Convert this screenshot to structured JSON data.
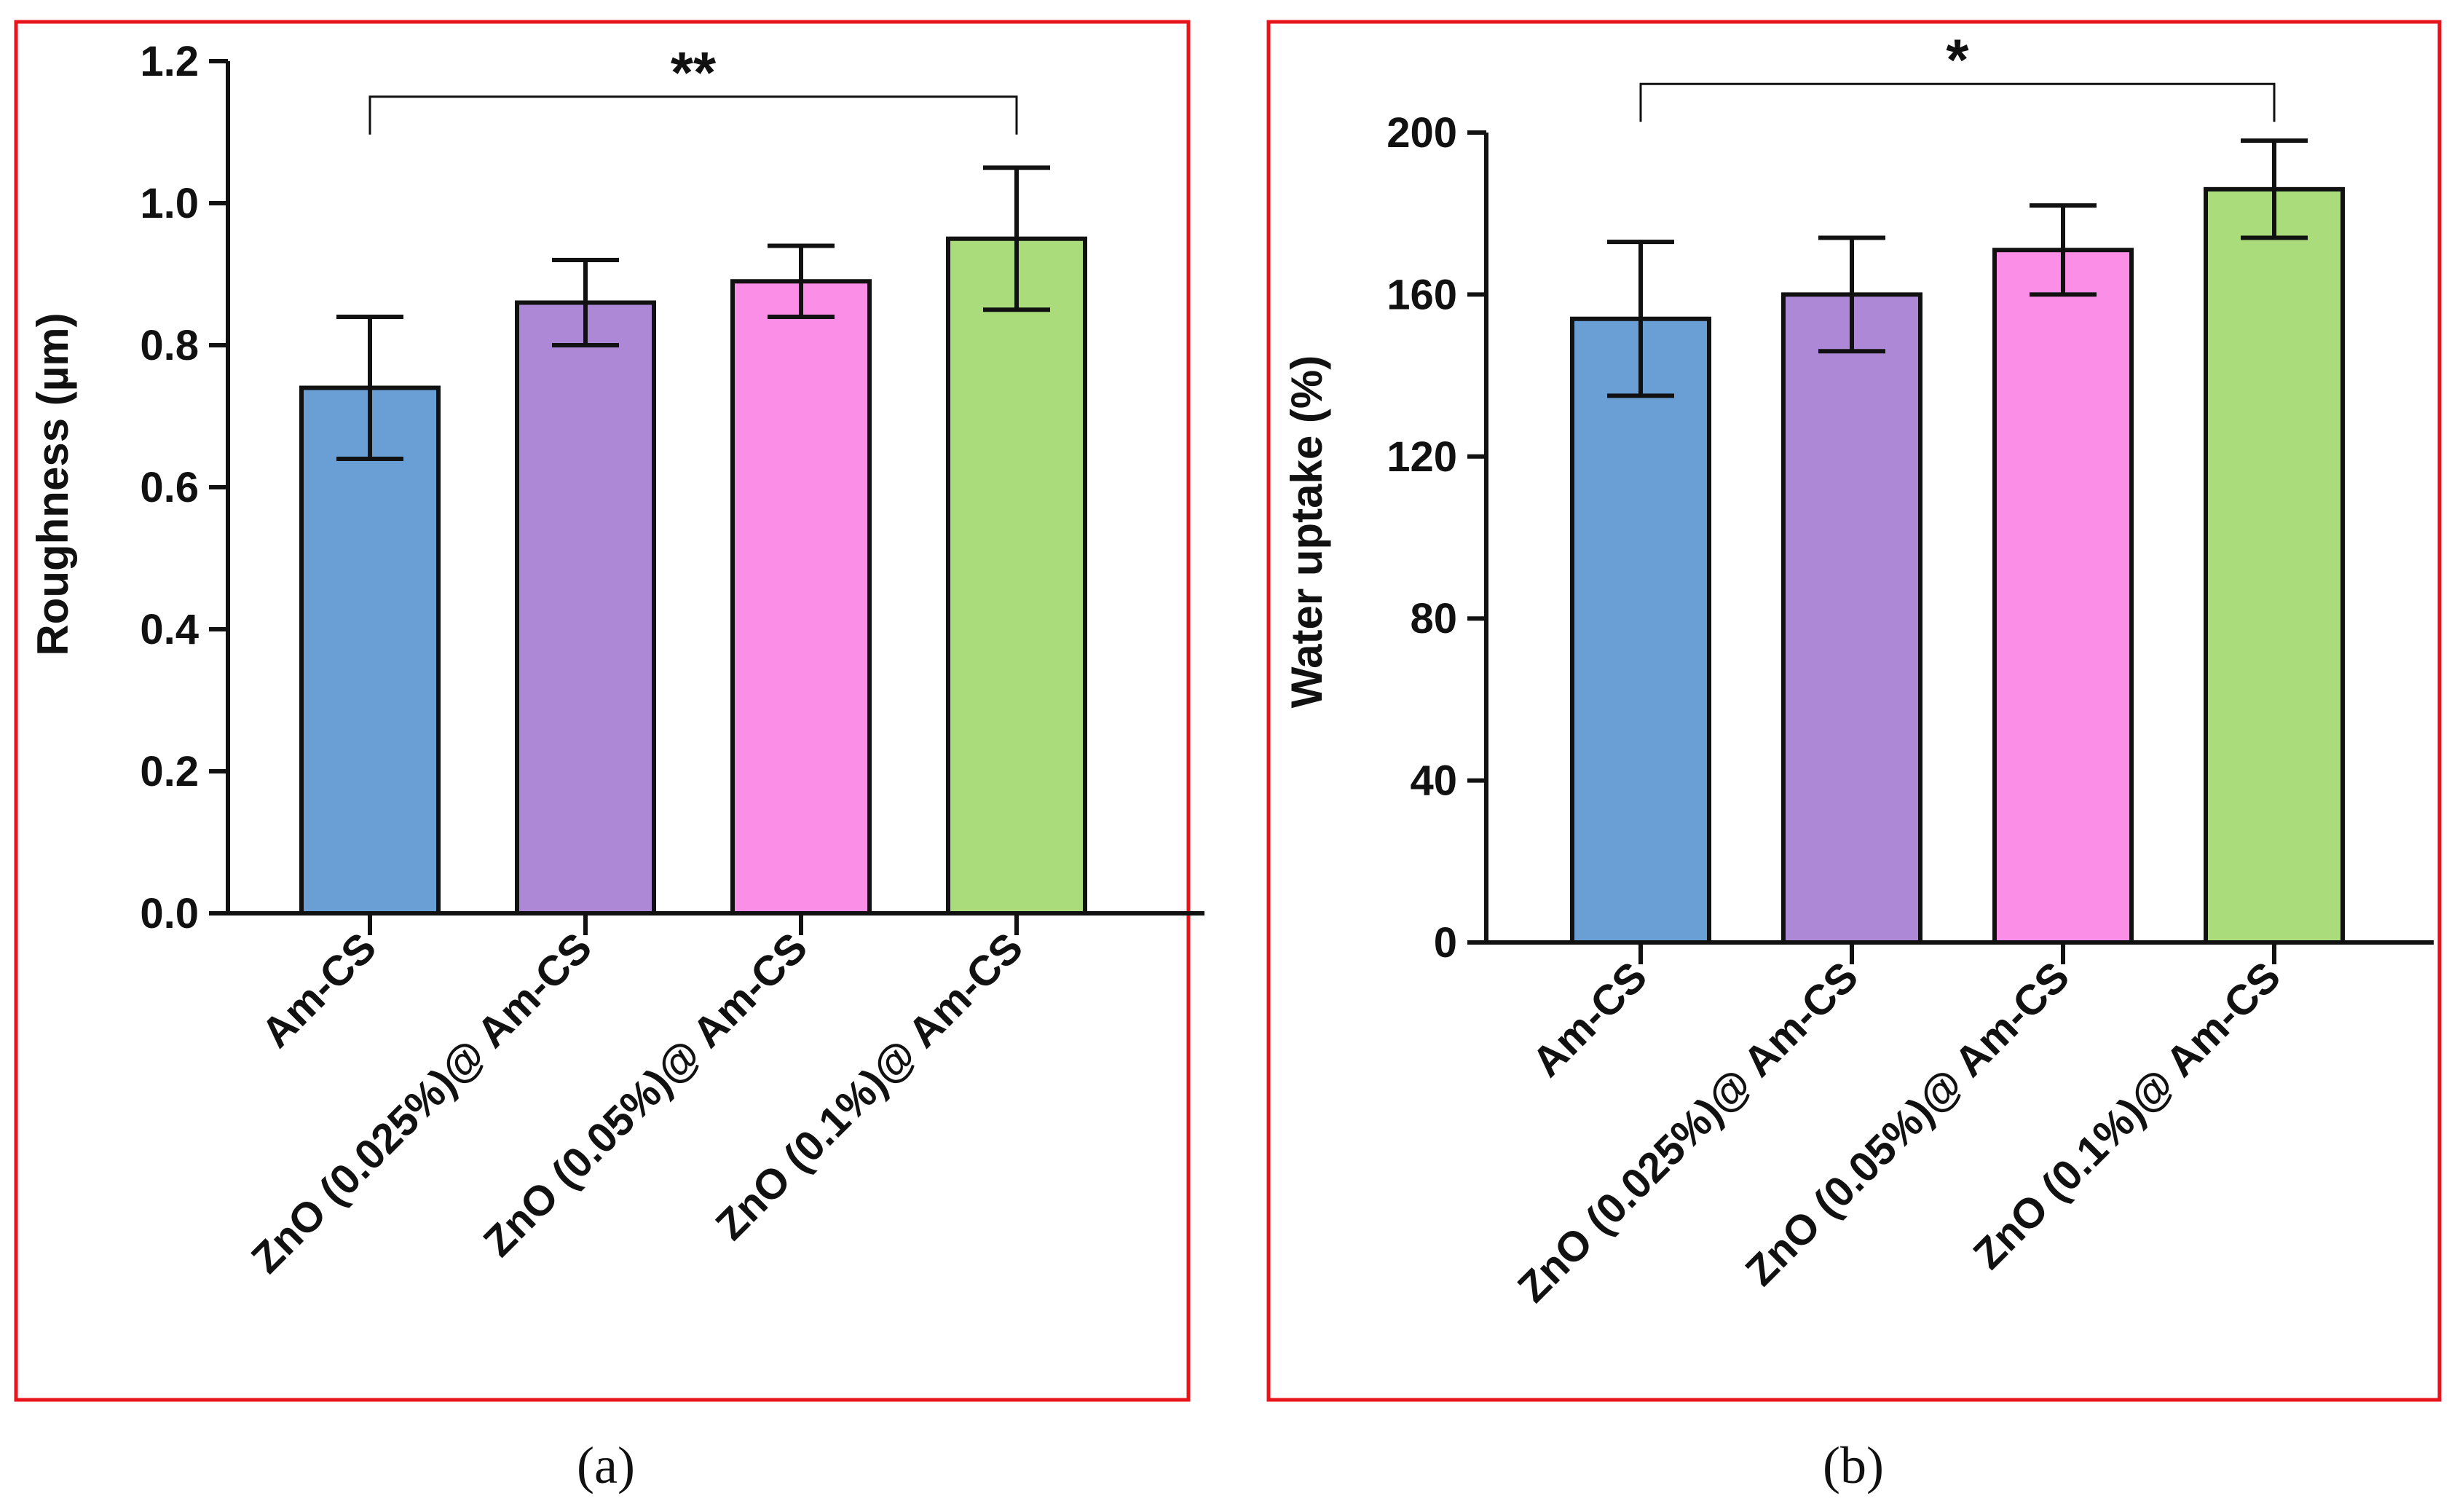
{
  "chart_data": [
    {
      "type": "bar",
      "panel": "(a)",
      "title": "",
      "xlabel": "",
      "ylabel": "Roughness (µm)",
      "categories": [
        "Am-CS",
        "ZnO (0.025%)@ Am-CS",
        "ZnO (0.05%)@ Am-CS",
        "ZnO (0.1%)@ Am-CS"
      ],
      "values": [
        0.74,
        0.86,
        0.89,
        0.95
      ],
      "errors": [
        0.1,
        0.06,
        0.05,
        0.1
      ],
      "colors": [
        "#6a9fd6",
        "#ad88d6",
        "#fb8ee6",
        "#abdc7c"
      ],
      "ylim": [
        0,
        1.2
      ],
      "yticks": [
        0.0,
        0.2,
        0.4,
        0.6,
        0.8,
        1.0,
        1.2
      ],
      "ytick_labels": [
        "0.0",
        "0.2",
        "0.4",
        "0.6",
        "0.8",
        "1.0",
        "1.2"
      ],
      "significance": {
        "from": 0,
        "to": 3,
        "label": "**",
        "bracket_y": 1.15
      },
      "grid": false
    },
    {
      "type": "bar",
      "panel": "(b)",
      "title": "",
      "xlabel": "",
      "ylabel": "Water uptake (%)",
      "categories": [
        "Am-CS",
        "ZnO (0.025%)@ Am-CS",
        "ZnO (0.05%)@ Am-CS",
        "ZnO (0.1%)@ Am-CS"
      ],
      "values": [
        154,
        160,
        171,
        186
      ],
      "errors": [
        19,
        14,
        11,
        12
      ],
      "colors": [
        "#6a9fd6",
        "#ad88d6",
        "#fb8ee6",
        "#abdc7c"
      ],
      "ylim": [
        0,
        200
      ],
      "yticks": [
        0,
        40,
        80,
        120,
        160,
        200
      ],
      "ytick_labels": [
        "0",
        "40",
        "80",
        "120",
        "160",
        "200"
      ],
      "significance": {
        "from": 0,
        "to": 3,
        "label": "*",
        "bracket_y": 212
      },
      "grid": false
    }
  ],
  "frame_color": "#e8141c"
}
